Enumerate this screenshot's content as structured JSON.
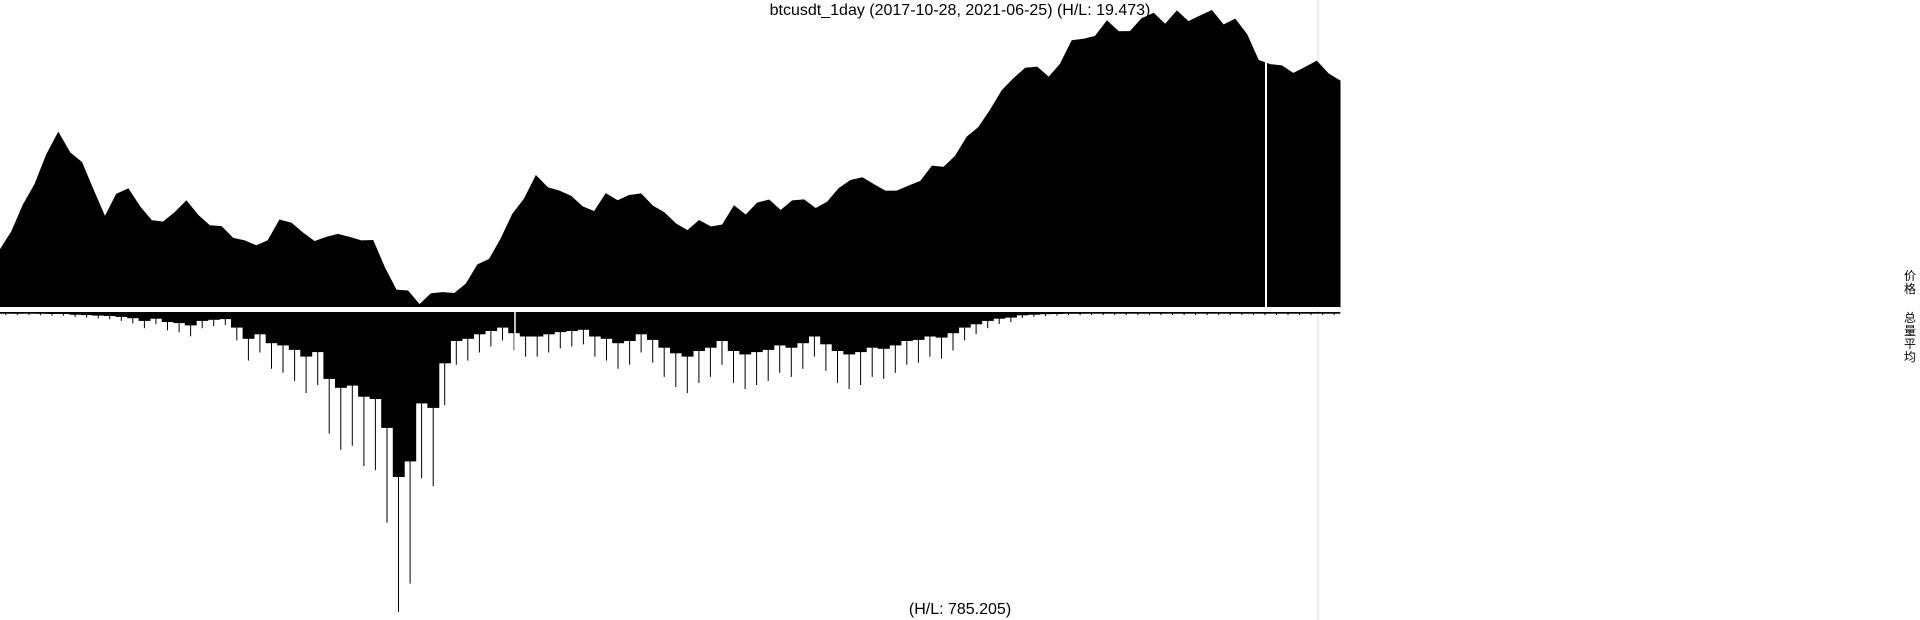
{
  "chart_data": {
    "type": "area",
    "title": "btcusdt_1day (2017-10-28, 2021-06-25) (H/L: 19.473)",
    "lower_label": "(H/L: 785.205)",
    "x_range": [
      "2017-10-28",
      "2021-06-25"
    ],
    "ratios": {
      "upper_high_low": 19.473,
      "lower_high_low": 785.205
    },
    "series": [
      {
        "name": "价格",
        "position": "upper",
        "values": [
          6100,
          7000,
          9500,
          11500,
          15500,
          19000,
          16000,
          14500,
          11000,
          8500,
          10500,
          11000,
          9000,
          8200,
          7700,
          8800,
          9500,
          8200,
          7800,
          7400,
          6800,
          6400,
          6200,
          6700,
          7900,
          7800,
          7100,
          6500,
          6600,
          6800,
          6700,
          6600,
          6400,
          5000,
          4100,
          3900,
          3600,
          3800,
          3900,
          4000,
          4200,
          5200,
          5400,
          6700,
          8500,
          10000,
          12500,
          11000,
          10500,
          10200,
          8900,
          8700,
          10100,
          9600,
          10500,
          10200,
          9000,
          8600,
          7700,
          7400,
          8000,
          7600,
          7500,
          9400,
          8500,
          9600,
          10000,
          8900,
          9500,
          9800,
          9200,
          9700,
          11200,
          11500,
          11900,
          11500,
          10500,
          10800,
          11500,
          12000,
          13500,
          13800,
          15400,
          18700,
          19400,
          23000,
          29000,
          33000,
          36000,
          35000,
          33000,
          37000,
          46000,
          48000,
          50000,
          57000,
          50000,
          52000,
          58000,
          60000,
          56000,
          61000,
          57000,
          58000,
          63000,
          54000,
          57000,
          49000,
          39000,
          37000,
          36000,
          33000,
          35000,
          39000,
          33000,
          31500
        ]
      },
      {
        "name": "总量平均",
        "position": "lower",
        "values": [
          7,
          8,
          7,
          8,
          9,
          9,
          12,
          14,
          16,
          18,
          22,
          28,
          40,
          30,
          45,
          50,
          60,
          40,
          35,
          32,
          70,
          120,
          100,
          140,
          150,
          170,
          200,
          180,
          300,
          340,
          330,
          380,
          390,
          520,
          740,
          670,
          410,
          430,
          230,
          130,
          120,
          100,
          85,
          70,
          95,
          110,
          110,
          100,
          90,
          85,
          80,
          110,
          120,
          140,
          130,
          100,
          125,
          160,
          185,
          200,
          175,
          160,
          130,
          175,
          190,
          180,
          170,
          150,
          160,
          140,
          110,
          145,
          175,
          190,
          180,
          160,
          165,
          150,
          130,
          125,
          110,
          115,
          95,
          70,
          55,
          40,
          30,
          25,
          15,
          12,
          10,
          9,
          8,
          8,
          7,
          7,
          6,
          6,
          6,
          6,
          6,
          6,
          5,
          5,
          5,
          5,
          5,
          5,
          5,
          5,
          5,
          5,
          5,
          5,
          5,
          5
        ]
      }
    ],
    "legend_placement": "right",
    "grid": false,
    "colors": {
      "fill": "#000000",
      "background": "#ffffff",
      "gap_line": "#ffffff",
      "separator": "#dddddd"
    }
  }
}
